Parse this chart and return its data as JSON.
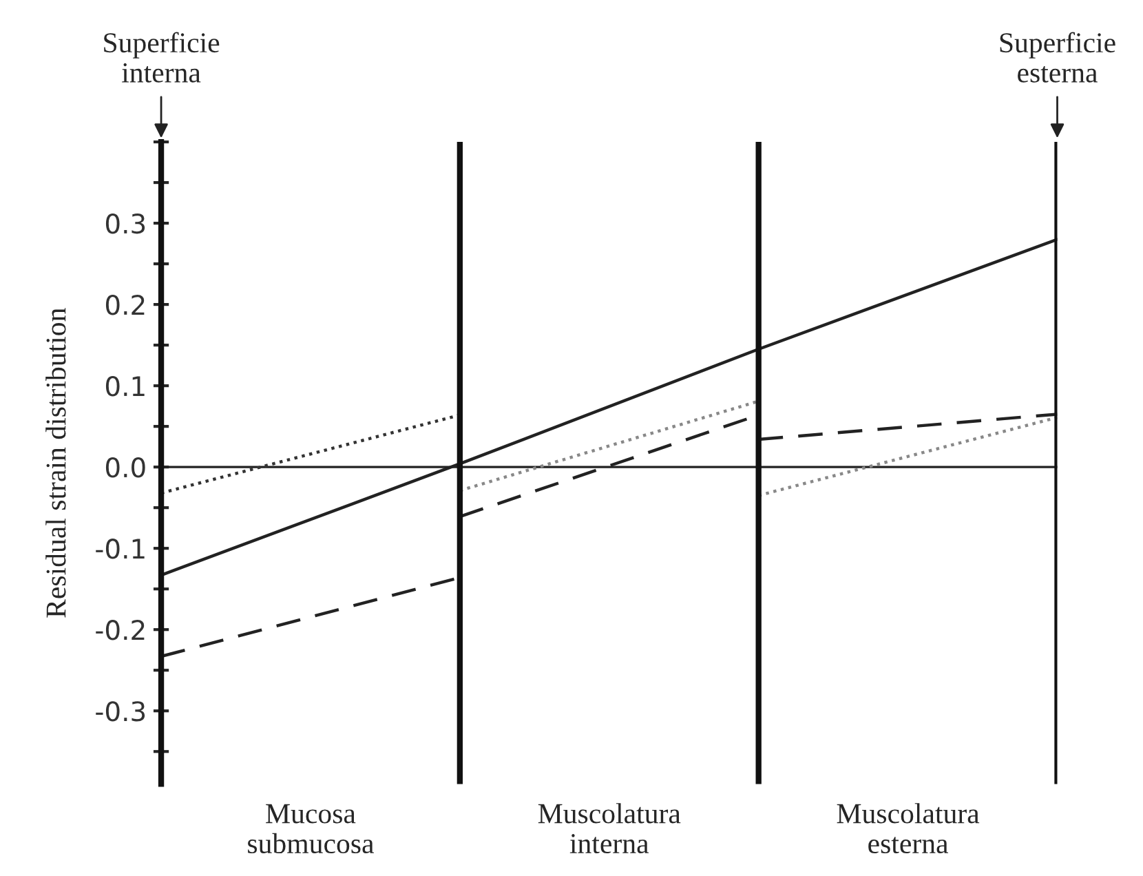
{
  "chart_data": {
    "type": "line",
    "ylabel": "Residual strain distribution",
    "categories": [
      null,
      null,
      null,
      null
    ],
    "ylim": [
      -0.39,
      0.4
    ],
    "yticks": [
      {
        "value": -0.35,
        "label": null
      },
      -0.3,
      {
        "value": -0.25,
        "label": null
      },
      -0.2,
      {
        "value": -0.15,
        "label": null
      },
      -0.1,
      {
        "value": -0.05,
        "label": null
      },
      {
        "value": 0,
        "label": "0.0"
      },
      {
        "value": 0.05,
        "label": null
      },
      0.1,
      {
        "value": 0.15,
        "label": null
      },
      0.2,
      {
        "value": 0.25,
        "label": null
      },
      0.3,
      {
        "value": 0.35,
        "label": null
      },
      {
        "value": 0.4,
        "label": null
      }
    ],
    "series": [
      {
        "color": "#222222",
        "line_style": "solid",
        "values": [
          -0.133,
          0.004,
          0.145,
          0.28
        ]
      },
      {
        "color": "#333333",
        "line_style": "dotted",
        "values": [
          -0.032,
          0.064,
          null,
          null
        ]
      },
      {
        "color": "#222222",
        "line_style": "dashed",
        "values": [
          -0.233,
          -0.136,
          null,
          null
        ]
      },
      {
        "color": "#222222",
        "line_style": "dashed",
        "values": [
          null,
          -0.061,
          0.064,
          null
        ]
      },
      {
        "color": "#222222",
        "line_style": "dashed",
        "values": [
          null,
          null,
          0.034,
          0.065
        ]
      },
      {
        "color": "#888888",
        "line_style": "dotted",
        "values": [
          null,
          -0.029,
          0.081,
          null
        ]
      },
      {
        "color": "#888888",
        "line_style": "dotted",
        "values": [
          null,
          null,
          -0.035,
          0.061
        ]
      }
    ],
    "ref_lines": [
      {
        "axis": "y",
        "value": 0
      }
    ],
    "annotations": [
      "Superficie\ninterna",
      "Superficie\nesterna",
      "Mucosa\nsubmucosa",
      "Muscolatura\ninterna",
      "Muscolatura\nesterna"
    ],
    "grid": false,
    "legend": false
  }
}
